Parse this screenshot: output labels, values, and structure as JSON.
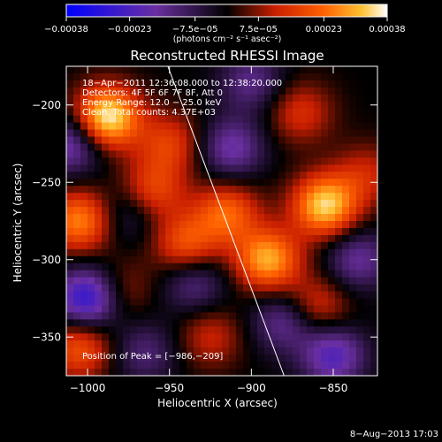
{
  "chart_data": {
    "type": "heatmap",
    "title": "Reconstructed RHESSI Image",
    "xlabel": "Heliocentric X (arcsec)",
    "ylabel": "Heliocentric Y (arcsec)",
    "xlim": [
      -1013,
      -823
    ],
    "ylim": [
      -375,
      -175
    ],
    "x_ticks": [
      -1000,
      -950,
      -900,
      -850
    ],
    "x_tick_labels": [
      "−1000",
      "−950",
      "−900",
      "−850"
    ],
    "y_ticks": [
      -200,
      -250,
      -300,
      -350
    ],
    "y_tick_labels": [
      "−200",
      "−250",
      "−300",
      "−350"
    ],
    "colorbar": {
      "range": [
        -0.00038,
        0.00038
      ],
      "ticks": [
        -0.00038,
        -0.00023,
        -7.5e-05,
        7.5e-05,
        0.00023,
        0.00038
      ],
      "tick_labels": [
        "−0.00038",
        "−0.00023",
        "−7.5e−05",
        "7.5e−05",
        "0.00023",
        "0.00038"
      ],
      "units": "(photons cm⁻² s⁻¹ asec⁻²)",
      "colors": [
        "#0000ff",
        "#6a2fa0",
        "#000000",
        "#c81e00",
        "#ff6000",
        "#ffc030",
        "#ffffff"
      ]
    },
    "annotations": {
      "line1": "18−Apr−2011 12:36:08.000 to 12:38:20.000",
      "line2": "Detectors: 4F 5F 6F 7F 8F, Att 0",
      "line3": "Energy Range: 12.0 − 25.0 keV",
      "line4": "Clean. Total counts: 4.37E+03",
      "peak": "Position of Peak = [−986,−209]"
    },
    "limb_line": {
      "x": [
        -951,
        -880
      ],
      "y": [
        -175,
        -375
      ]
    },
    "peaks": [
      {
        "x": -988,
        "y": -208,
        "value": 0.00038
      },
      {
        "x": -855,
        "y": -265,
        "value": 0.00034
      },
      {
        "x": -1005,
        "y": -275,
        "value": 0.00026
      },
      {
        "x": -890,
        "y": -300,
        "value": 0.0003
      },
      {
        "x": -915,
        "y": -270,
        "value": 0.00022
      },
      {
        "x": -940,
        "y": -290,
        "value": 0.0002
      },
      {
        "x": -960,
        "y": -255,
        "value": 0.00018
      },
      {
        "x": -1005,
        "y": -357,
        "value": 0.0002
      },
      {
        "x": -950,
        "y": -225,
        "value": 0.00016
      },
      {
        "x": -870,
        "y": -205,
        "value": 0.00014
      },
      {
        "x": -860,
        "y": -330,
        "value": 0.00015
      },
      {
        "x": -925,
        "y": -350,
        "value": 0.00012
      },
      {
        "x": -980,
        "y": -320,
        "value": 0.0001
      },
      {
        "x": -830,
        "y": -245,
        "value": 0.00012
      }
    ],
    "troughs": [
      {
        "x": -1000,
        "y": -325,
        "value": -0.0003
      },
      {
        "x": -1010,
        "y": -225,
        "value": -0.0002
      },
      {
        "x": -912,
        "y": -228,
        "value": -0.00018
      },
      {
        "x": -850,
        "y": -362,
        "value": -0.00022
      },
      {
        "x": -835,
        "y": -300,
        "value": -0.00016
      },
      {
        "x": -880,
        "y": -340,
        "value": -0.00016
      },
      {
        "x": -935,
        "y": -315,
        "value": -0.00014
      },
      {
        "x": -965,
        "y": -360,
        "value": -0.00012
      },
      {
        "x": -900,
        "y": -185,
        "value": -0.00014
      },
      {
        "x": -975,
        "y": -270,
        "value": -0.0001
      }
    ]
  },
  "footer": {
    "timestamp": "8−Aug−2013 17:03"
  }
}
